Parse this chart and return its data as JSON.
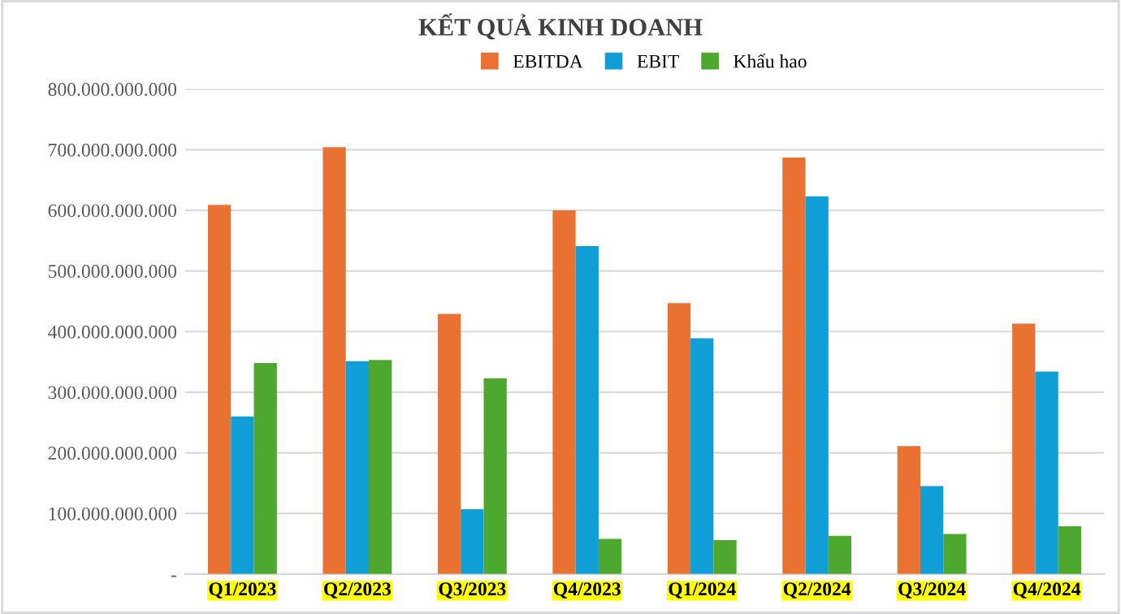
{
  "chart_data": {
    "type": "bar",
    "title": "KẾT QUẢ KINH DOANH",
    "categories": [
      "Q1/2023",
      "Q2/2023",
      "Q3/2023",
      "Q4/2023",
      "Q1/2024",
      "Q2/2024",
      "Q3/2024",
      "Q4/2024"
    ],
    "series": [
      {
        "name": "EBITDA",
        "color": "#e97132",
        "values": [
          609000000000,
          704000000000,
          429000000000,
          600000000000,
          447000000000,
          687000000000,
          211000000000,
          413000000000
        ]
      },
      {
        "name": "EBIT",
        "color": "#0f9ed5",
        "values": [
          260000000000,
          351000000000,
          107000000000,
          541000000000,
          389000000000,
          623000000000,
          145000000000,
          334000000000
        ]
      },
      {
        "name": "Khấu hao",
        "color": "#4ea72e",
        "values": [
          348000000000,
          353000000000,
          323000000000,
          58000000000,
          56000000000,
          63000000000,
          66000000000,
          79000000000
        ]
      }
    ],
    "ylim": [
      0,
      800000000000
    ],
    "yticks": [
      {
        "value": 0,
        "label": "-"
      },
      {
        "value": 100000000000,
        "label": "100.000.000.000"
      },
      {
        "value": 200000000000,
        "label": "200.000.000.000"
      },
      {
        "value": 300000000000,
        "label": "300.000.000.000"
      },
      {
        "value": 400000000000,
        "label": "400.000.000.000"
      },
      {
        "value": 500000000000,
        "label": "500.000.000.000"
      },
      {
        "value": 600000000000,
        "label": "600.000.000.000"
      },
      {
        "value": 700000000000,
        "label": "700.000.000.000"
      },
      {
        "value": 800000000000,
        "label": "800.000.000.000"
      }
    ],
    "grid": "y",
    "legend": "top"
  }
}
